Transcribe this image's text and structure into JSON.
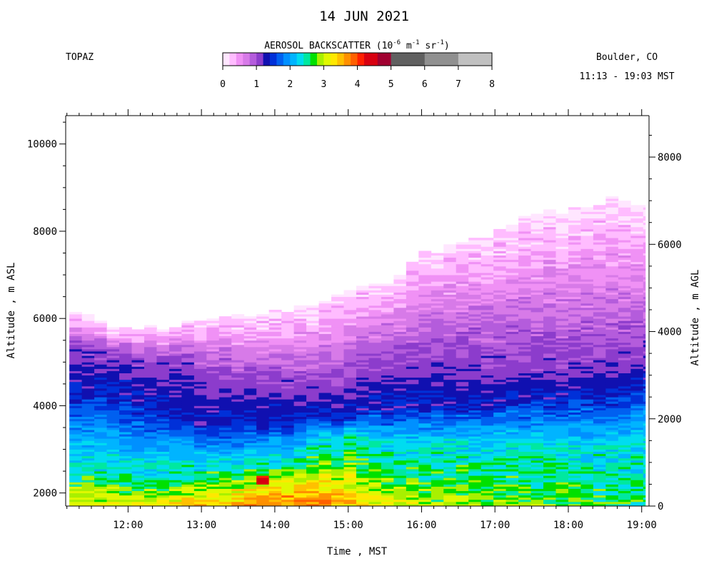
{
  "chart_data": {
    "type": "heatmap",
    "title": "14 JUN 2021",
    "instrument": "TOPAZ",
    "location": "Boulder, CO",
    "time_range": "11:13 - 19:03 MST",
    "colorbar": {
      "label_main": "AEROSOL BACKSCATTER (10",
      "label_exp1": "-6",
      "label_mid1": " m",
      "label_exp2": "-1",
      "label_mid2": " sr",
      "label_exp3": "-1",
      "label_end": ")",
      "ticks": [
        "0",
        "1",
        "2",
        "3",
        "4",
        "5",
        "6",
        "7",
        "8"
      ],
      "tick_values": [
        0,
        1,
        2,
        3,
        4,
        5,
        6,
        7,
        8
      ],
      "segments": [
        {
          "from": 0.0,
          "to": 0.2,
          "color": "#ffe6ff"
        },
        {
          "from": 0.2,
          "to": 0.4,
          "color": "#ffbcff"
        },
        {
          "from": 0.4,
          "to": 0.6,
          "color": "#f091f5"
        },
        {
          "from": 0.6,
          "to": 0.8,
          "color": "#d77ae8"
        },
        {
          "from": 0.8,
          "to": 1.0,
          "color": "#b45cdc"
        },
        {
          "from": 1.0,
          "to": 1.2,
          "color": "#8c3ccc"
        },
        {
          "from": 1.2,
          "to": 1.4,
          "color": "#1010b0"
        },
        {
          "from": 1.4,
          "to": 1.6,
          "color": "#0030d8"
        },
        {
          "from": 1.6,
          "to": 1.8,
          "color": "#0060f0"
        },
        {
          "from": 1.8,
          "to": 2.0,
          "color": "#0090ff"
        },
        {
          "from": 2.0,
          "to": 2.2,
          "color": "#00b4ff"
        },
        {
          "from": 2.2,
          "to": 2.4,
          "color": "#00dcf0"
        },
        {
          "from": 2.4,
          "to": 2.6,
          "color": "#00e8a0"
        },
        {
          "from": 2.6,
          "to": 2.8,
          "color": "#00e000"
        },
        {
          "from": 2.8,
          "to": 3.0,
          "color": "#a8f000"
        },
        {
          "from": 3.0,
          "to": 3.2,
          "color": "#e0f800"
        },
        {
          "from": 3.2,
          "to": 3.4,
          "color": "#ffe800"
        },
        {
          "from": 3.4,
          "to": 3.6,
          "color": "#ffc000"
        },
        {
          "from": 3.6,
          "to": 3.8,
          "color": "#ff9000"
        },
        {
          "from": 3.8,
          "to": 4.0,
          "color": "#ff6000"
        },
        {
          "from": 4.0,
          "to": 4.2,
          "color": "#ff2000"
        },
        {
          "from": 4.2,
          "to": 4.6,
          "color": "#d80010"
        },
        {
          "from": 4.6,
          "to": 5.0,
          "color": "#a00030"
        },
        {
          "from": 5.0,
          "to": 6.0,
          "color": "#606060"
        },
        {
          "from": 6.0,
          "to": 7.0,
          "color": "#909090"
        },
        {
          "from": 7.0,
          "to": 8.0,
          "color": "#c0c0c0"
        }
      ]
    },
    "xlabel": "Time , MST",
    "ylabel_left": "Altitude , m ASL",
    "ylabel_right": "Altitude , m AGL",
    "xlim": [
      11.15,
      19.1
    ],
    "ylim_left": [
      1700,
      10650
    ],
    "ylim_right": [
      0,
      8950
    ],
    "x_ticks": [
      12,
      13,
      14,
      15,
      16,
      17,
      18,
      19
    ],
    "x_tick_labels": [
      "12:00",
      "13:00",
      "14:00",
      "15:00",
      "16:00",
      "17:00",
      "18:00",
      "19:00"
    ],
    "y_ticks_left": [
      2000,
      4000,
      6000,
      8000,
      10000
    ],
    "y_ticks_right": [
      0,
      2000,
      4000,
      6000,
      8000
    ],
    "y_tick_labels_left": [
      "2000",
      "4000",
      "6000",
      "8000",
      "10000"
    ],
    "y_tick_labels_right": [
      "0",
      "2000",
      "4000",
      "6000",
      "8000"
    ],
    "profile_time_start": 11.2,
    "profile_time_step": 0.17,
    "profile_time_end": 19.05,
    "altitude_bins": [
      1700,
      1750,
      1800,
      1850,
      1900,
      1950,
      2000,
      2050,
      2100,
      2150,
      2200,
      2250,
      2300,
      2350,
      2400,
      2450,
      2500,
      2550,
      2600,
      2650,
      2700,
      2750,
      2800,
      2850,
      2900,
      2950,
      3000,
      3050,
      3100,
      3150,
      3200,
      3250,
      3300,
      3350,
      3400,
      3450,
      3500,
      3550,
      3600,
      3650,
      3700,
      3750,
      3800,
      3850,
      3900,
      3950,
      4000,
      4050,
      4100,
      4150,
      4200,
      4250,
      4300,
      4350,
      4400,
      4450,
      4500,
      4550,
      4600,
      4650,
      4700,
      4750,
      4800,
      4850,
      4900,
      4950,
      5000,
      5050,
      5100,
      5150,
      5200,
      5250,
      5300,
      5350,
      5400,
      5450,
      5500,
      5550,
      5600,
      5650,
      5700,
      5750,
      5800,
      5850,
      5900,
      5950,
      6000,
      6050,
      6100,
      6150,
      6200,
      6250,
      6300,
      6350,
      6400,
      6450,
      6500,
      6550,
      6600,
      6650,
      6700,
      6750,
      6800,
      6850,
      6900,
      6950,
      7000,
      7050,
      7100,
      7150,
      7200,
      7250,
      7300,
      7350,
      7400,
      7450,
      7500,
      7550,
      7600,
      7650,
      7700,
      7750,
      7800,
      7850,
      7900,
      7950,
      8000,
      8050,
      8100,
      8150,
      8200,
      8250,
      8300,
      8350,
      8400,
      8450,
      8500,
      8550,
      8600,
      8650,
      8700,
      8750
    ],
    "layers": {
      "time_nodes": [
        11.2,
        12.0,
        12.5,
        13.0,
        13.5,
        14.0,
        14.5,
        15.0,
        15.5,
        16.0,
        16.5,
        17.0,
        17.5,
        18.0,
        18.5,
        19.05
      ],
      "top_altitude": [
        6100,
        5700,
        5800,
        5950,
        6000,
        6100,
        6300,
        6650,
        6900,
        7500,
        7700,
        8000,
        8400,
        8500,
        8700,
        8550
      ],
      "magenta_base": [
        5300,
        5100,
        5000,
        4700,
        4600,
        4500,
        4450,
        4600,
        4900,
        5100,
        5100,
        4950,
        4900,
        4900,
        5000,
        5200
      ],
      "deep_blue_base": [
        4600,
        4300,
        3900,
        3600,
        3550,
        3650,
        3700,
        3900,
        4050,
        4000,
        4100,
        4200,
        4300,
        4350,
        4400,
        4600
      ],
      "mixed_layer_top": [
        2600,
        2500,
        2500,
        2600,
        2700,
        2800,
        3100,
        3300,
        3100,
        3000,
        3000,
        3000,
        3000,
        3000,
        3000,
        3000
      ],
      "surface_max_value": [
        3.2,
        3.1,
        3.2,
        3.4,
        3.6,
        3.8,
        3.9,
        3.4,
        3.1,
        2.9,
        2.9,
        2.8,
        2.8,
        2.7,
        2.6,
        2.5
      ]
    },
    "legend": "none",
    "grid": false
  }
}
